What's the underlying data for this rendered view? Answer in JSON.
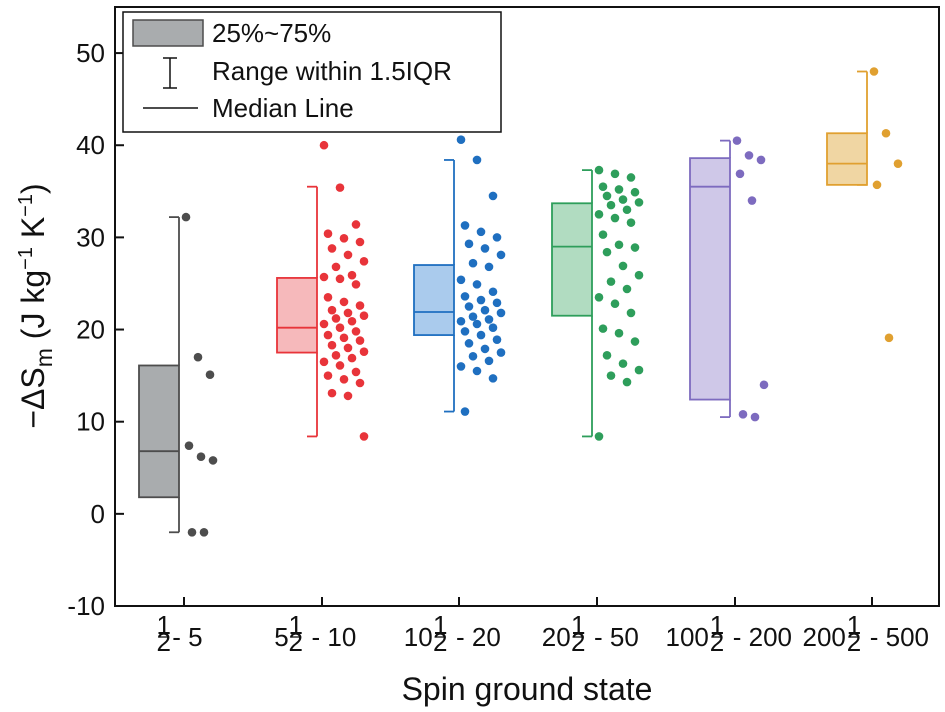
{
  "chart_data": {
    "type": "box",
    "xlabel": "Spin ground state",
    "ylabel": {
      "prefix": "−ΔS",
      "subscript": "m",
      "units_open": " (J kg",
      "sup1": "−1",
      "units_mid": " K",
      "sup2": "−1",
      "units_close": ")"
    },
    "ylim": [
      -10,
      55
    ],
    "yticks": [
      -10,
      0,
      10,
      20,
      30,
      40,
      50
    ],
    "legend": {
      "position": "top-left",
      "entries": [
        "25%~75%",
        "Range within 1.5IQR",
        "Median Line"
      ]
    },
    "categories": [
      {
        "whole": "",
        "frac_num": "1",
        "frac_den": "2",
        "rest": "- 5"
      },
      {
        "whole": "5",
        "frac_num": "1",
        "frac_den": "2",
        "rest": " - 10"
      },
      {
        "whole": "10",
        "frac_num": "1",
        "frac_den": "2",
        "rest": " - 20"
      },
      {
        "whole": "20",
        "frac_num": "1",
        "frac_den": "2",
        "rest": " - 50"
      },
      {
        "whole": "100",
        "frac_num": "1",
        "frac_den": "2",
        "rest": " - 200"
      },
      {
        "whole": "200",
        "frac_num": "1",
        "frac_den": "2",
        "rest": " - 500"
      }
    ],
    "series": [
      {
        "name": "½-5",
        "color": "#4d4d4d",
        "fill": "#a9acae",
        "q1": 1.8,
        "median": 6.8,
        "q3": 16.1,
        "whisker_low": -2.0,
        "whisker_high": 32.2,
        "points": [
          32.2,
          17.0,
          15.1,
          7.4,
          6.2,
          5.8,
          -2.0,
          -2.0
        ]
      },
      {
        "name": "5½-10",
        "color": "#e8343a",
        "fill": "#f6b9bb",
        "q1": 17.5,
        "median": 20.2,
        "q3": 25.6,
        "whisker_low": 8.4,
        "whisker_high": 35.5,
        "points": [
          40.0,
          35.4,
          31.4,
          30.4,
          29.9,
          29.5,
          28.8,
          28.1,
          27.4,
          26.8,
          25.9,
          25.7,
          25.5,
          24.9,
          23.5,
          23.0,
          22.6,
          22.1,
          21.8,
          21.5,
          21.2,
          20.9,
          20.6,
          20.2,
          19.8,
          19.4,
          19.1,
          18.8,
          18.3,
          18.0,
          17.6,
          17.2,
          16.9,
          16.5,
          16.1,
          15.4,
          15.0,
          14.6,
          14.2,
          13.1,
          12.8,
          8.4
        ]
      },
      {
        "name": "10½-20",
        "color": "#1f6fc0",
        "fill": "#aacbed",
        "q1": 19.4,
        "median": 21.9,
        "q3": 27.0,
        "whisker_low": 11.1,
        "whisker_high": 38.4,
        "points": [
          40.6,
          38.4,
          34.5,
          31.3,
          30.6,
          30.0,
          29.3,
          28.8,
          28.1,
          27.2,
          26.8,
          25.4,
          24.9,
          24.1,
          23.6,
          23.2,
          22.9,
          22.5,
          22.1,
          21.8,
          21.4,
          21.1,
          20.9,
          20.6,
          20.2,
          19.8,
          19.4,
          18.9,
          18.5,
          17.9,
          17.5,
          17.1,
          16.6,
          16.0,
          15.5,
          14.7,
          11.1
        ]
      },
      {
        "name": "20½-50",
        "color": "#2e9e5b",
        "fill": "#b1dcc1",
        "q1": 21.5,
        "median": 29.0,
        "q3": 33.7,
        "whisker_low": 8.4,
        "whisker_high": 37.3,
        "points": [
          37.3,
          36.9,
          36.5,
          35.5,
          35.2,
          34.9,
          34.5,
          34.1,
          33.8,
          33.5,
          33.0,
          32.5,
          32.1,
          31.6,
          30.3,
          29.2,
          28.9,
          28.4,
          26.9,
          25.9,
          25.2,
          24.4,
          23.5,
          22.8,
          21.8,
          20.1,
          19.6,
          18.7,
          17.2,
          16.3,
          15.6,
          15.0,
          14.3,
          8.4
        ]
      },
      {
        "name": "100½-200",
        "color": "#7d6bbf",
        "fill": "#cfc8e8",
        "q1": 12.4,
        "median": 35.5,
        "q3": 38.6,
        "whisker_low": 10.5,
        "whisker_high": 40.5,
        "points": [
          40.5,
          38.9,
          38.4,
          36.9,
          34.0,
          14.0,
          10.8,
          10.5
        ]
      },
      {
        "name": "200½-500",
        "color": "#e0a030",
        "fill": "#f0d6a3",
        "q1": 35.7,
        "median": 38.0,
        "q3": 41.3,
        "whisker_low": 35.7,
        "whisker_high": 48.0,
        "points": [
          48.0,
          41.3,
          38.0,
          35.7,
          19.1
        ]
      }
    ]
  }
}
